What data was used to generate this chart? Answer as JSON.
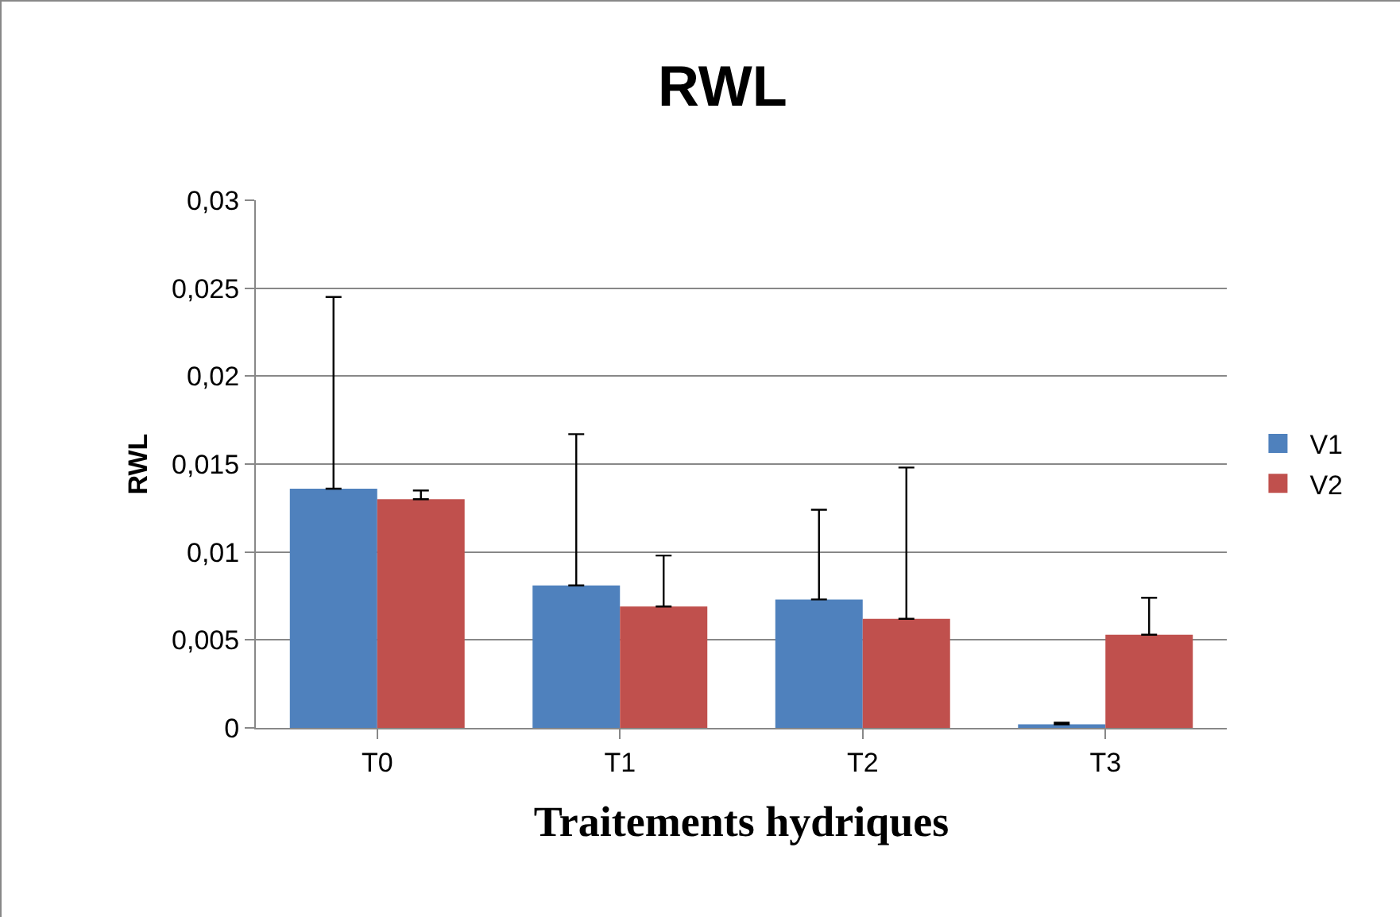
{
  "chart_data": {
    "type": "bar",
    "title": "RWL",
    "xlabel": "Traitements hydriques",
    "ylabel": "RWL",
    "categories": [
      "T0",
      "T1",
      "T2",
      "T3"
    ],
    "series": [
      {
        "name": "V1",
        "color": "#4f81bd",
        "values": [
          0.0136,
          0.0081,
          0.0073,
          0.0002
        ],
        "errors": [
          [
            0.0136,
            0.0245
          ],
          [
            0.0081,
            0.0167
          ],
          [
            0.0073,
            0.0124
          ],
          [
            0.0002,
            0.0003
          ]
        ]
      },
      {
        "name": "V2",
        "color": "#c0504d",
        "values": [
          0.013,
          0.0069,
          0.0062,
          0.0053
        ],
        "errors": [
          [
            0.013,
            0.0135
          ],
          [
            0.0069,
            0.0098
          ],
          [
            0.0062,
            0.0148
          ],
          [
            0.0053,
            0.0074
          ]
        ]
      }
    ],
    "ylim": [
      0,
      0.03
    ],
    "yticks": [
      {
        "value": 0,
        "label": "0"
      },
      {
        "value": 0.005,
        "label": "0,005"
      },
      {
        "value": 0.01,
        "label": "0,01"
      },
      {
        "value": 0.015,
        "label": "0,015"
      },
      {
        "value": 0.02,
        "label": "0,02"
      },
      {
        "value": 0.025,
        "label": "0,025"
      },
      {
        "value": 0.03,
        "label": "0,03"
      }
    ],
    "grid": "y",
    "legend": "right"
  }
}
